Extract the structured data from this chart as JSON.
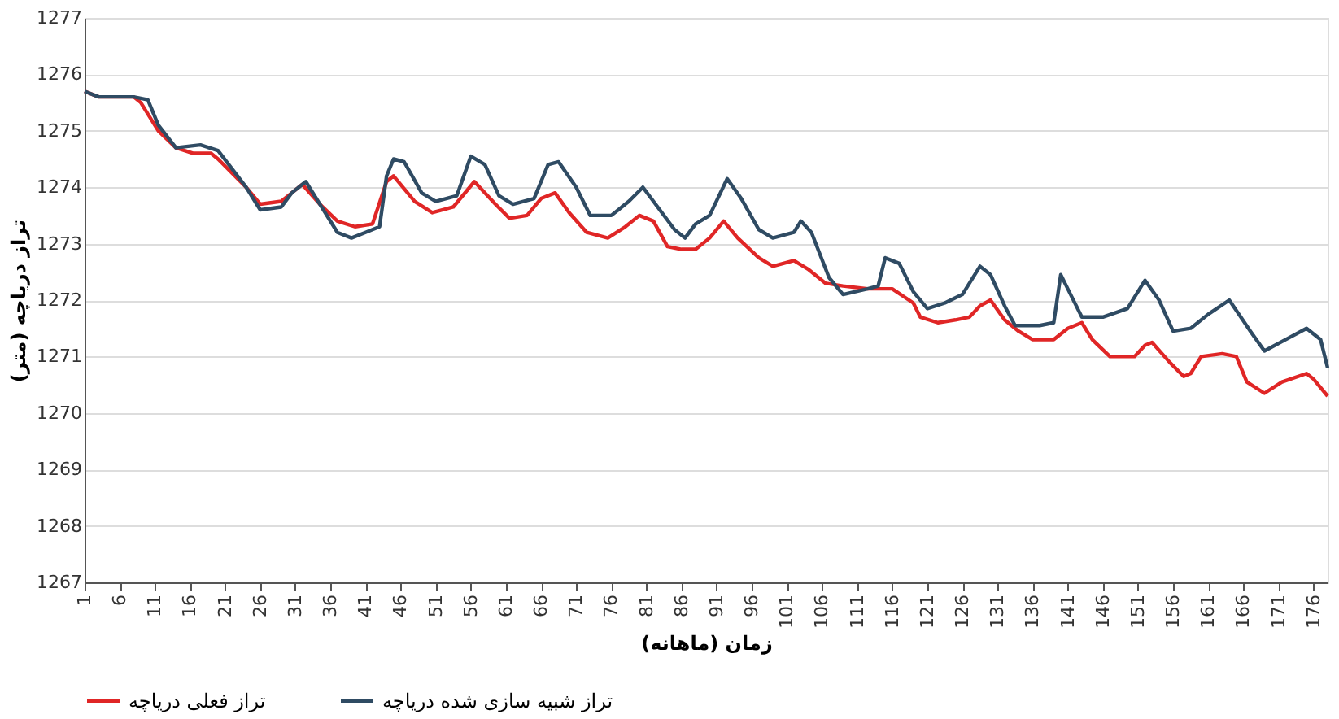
{
  "chart_data": {
    "type": "line",
    "xlabel": "زمان (ماهانه)",
    "ylabel": "تراز دریاچه (متر)",
    "xlim": [
      1,
      178
    ],
    "xticks": [
      1,
      6,
      11,
      16,
      21,
      26,
      31,
      36,
      41,
      46,
      51,
      56,
      61,
      66,
      71,
      76,
      81,
      86,
      91,
      96,
      101,
      106,
      111,
      116,
      121,
      126,
      131,
      136,
      141,
      146,
      151,
      156,
      161,
      166,
      171,
      176
    ],
    "ylim": [
      1267,
      1277
    ],
    "yticks": [
      1267,
      1268,
      1269,
      1270,
      1271,
      1272,
      1273,
      1274,
      1275,
      1276,
      1277
    ],
    "grid": "y",
    "legend": "bottom",
    "marker": "none",
    "line_style": "solid",
    "series": [
      {
        "name": "تراز فعلی دریاچه",
        "color": "#e02626",
        "x": [
          1,
          3,
          8,
          9,
          11.5,
          14,
          16.5,
          19,
          20,
          24,
          26,
          29,
          30.5,
          32,
          34.5,
          37,
          39.5,
          42,
          44,
          45,
          48,
          50.5,
          53.5,
          56.5,
          59.5,
          61.5,
          64,
          66,
          68,
          70,
          72.5,
          75.5,
          78,
          80,
          82,
          84,
          86,
          88,
          90,
          92,
          94,
          97,
          99,
          102,
          104,
          106.5,
          109,
          112.5,
          116,
          119,
          120,
          122.5,
          125,
          127,
          128.5,
          130,
          132,
          134,
          136,
          139,
          141,
          143,
          144.5,
          147,
          150.5,
          152,
          153,
          155.5,
          157.5,
          158.5,
          160,
          163,
          165,
          166.5,
          169,
          171.5,
          175,
          176,
          178
        ],
        "values": [
          1275.7,
          1275.6,
          1275.6,
          1275.5,
          1275.0,
          1274.7,
          1274.6,
          1274.6,
          1274.5,
          1274.0,
          1273.7,
          1273.75,
          1273.9,
          1274.05,
          1273.7,
          1273.4,
          1273.3,
          1273.35,
          1274.1,
          1274.2,
          1273.75,
          1273.55,
          1273.65,
          1274.1,
          1273.7,
          1273.45,
          1273.5,
          1273.8,
          1273.9,
          1273.55,
          1273.2,
          1273.1,
          1273.3,
          1273.5,
          1273.4,
          1272.95,
          1272.9,
          1272.9,
          1273.1,
          1273.4,
          1273.1,
          1272.75,
          1272.6,
          1272.7,
          1272.55,
          1272.3,
          1272.25,
          1272.2,
          1272.2,
          1271.95,
          1271.7,
          1271.6,
          1271.65,
          1271.7,
          1271.9,
          1272.0,
          1271.65,
          1271.45,
          1271.3,
          1271.3,
          1271.5,
          1271.6,
          1271.3,
          1271.0,
          1271.0,
          1271.2,
          1271.25,
          1270.9,
          1270.65,
          1270.7,
          1271.0,
          1271.05,
          1271.0,
          1270.55,
          1270.35,
          1270.55,
          1270.7,
          1270.6,
          1270.3
        ]
      },
      {
        "name": "تراز شبیه سازی شده دریاچه",
        "color": "#2f4b63",
        "x": [
          1,
          3,
          8,
          10,
          11.5,
          14,
          17.5,
          20,
          24,
          26,
          29,
          30.5,
          32.5,
          34.5,
          37,
          39,
          41,
          43,
          44,
          45,
          46.5,
          49,
          51,
          54,
          56,
          58,
          60,
          62,
          65,
          67,
          68.5,
          71,
          73,
          76,
          78.5,
          80.5,
          82,
          85,
          86.5,
          88,
          90,
          92.5,
          94.5,
          97,
          99,
          102,
          103,
          104.5,
          107,
          109,
          112.5,
          114,
          115,
          117,
          119,
          121,
          123.5,
          126,
          128.5,
          130,
          132,
          133.5,
          137,
          139,
          140,
          141,
          143,
          146,
          149.5,
          152,
          154,
          156,
          158.5,
          161,
          164,
          167,
          169,
          172,
          175,
          177,
          178
        ],
        "values": [
          1275.7,
          1275.6,
          1275.6,
          1275.55,
          1275.1,
          1274.7,
          1274.75,
          1274.65,
          1274.0,
          1273.6,
          1273.65,
          1273.9,
          1274.1,
          1273.7,
          1273.2,
          1273.1,
          1273.2,
          1273.3,
          1274.2,
          1274.5,
          1274.45,
          1273.9,
          1273.75,
          1273.85,
          1274.55,
          1274.4,
          1273.85,
          1273.7,
          1273.8,
          1274.4,
          1274.45,
          1274.0,
          1273.5,
          1273.5,
          1273.75,
          1274.0,
          1273.75,
          1273.25,
          1273.1,
          1273.35,
          1273.5,
          1274.15,
          1273.8,
          1273.25,
          1273.1,
          1273.2,
          1273.4,
          1273.2,
          1272.4,
          1272.1,
          1272.2,
          1272.25,
          1272.75,
          1272.65,
          1272.15,
          1271.85,
          1271.95,
          1272.1,
          1272.6,
          1272.45,
          1271.9,
          1271.55,
          1271.55,
          1271.6,
          1272.45,
          1272.2,
          1271.7,
          1271.7,
          1271.85,
          1272.35,
          1272.0,
          1271.45,
          1271.5,
          1271.75,
          1272.0,
          1271.45,
          1271.1,
          1271.3,
          1271.5,
          1271.3,
          1270.8
        ]
      }
    ]
  }
}
